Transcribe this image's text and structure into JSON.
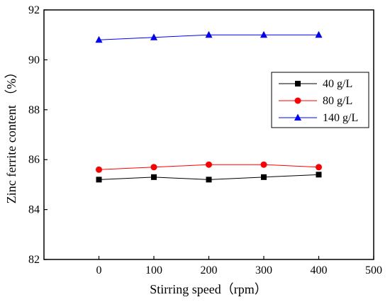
{
  "chart_data": {
    "type": "line",
    "title": "",
    "xlabel": "Stirring speed（rpm）",
    "ylabel": "Zinc ferrite content （%）",
    "xlim": [
      -100,
      500
    ],
    "ylim": [
      82,
      92
    ],
    "x_ticks": [
      "0",
      "100",
      "200",
      "300",
      "400",
      "500"
    ],
    "y_ticks": [
      "82",
      "84",
      "86",
      "88",
      "90",
      "92"
    ],
    "x": [
      0,
      100,
      200,
      300,
      400
    ],
    "grid": false,
    "legend_position": "right",
    "series": [
      {
        "name": "40 g/L",
        "values": [
          85.2,
          85.3,
          85.2,
          85.3,
          85.4
        ],
        "color": "#000000",
        "marker": "square"
      },
      {
        "name": "80 g/L",
        "values": [
          85.6,
          85.7,
          85.8,
          85.8,
          85.7
        ],
        "color": "#ff0000",
        "marker": "circle"
      },
      {
        "name": "140 g/L",
        "values": [
          90.8,
          90.9,
          91.0,
          91.0,
          91.0
        ],
        "color": "#0000ff",
        "marker": "triangle"
      }
    ]
  }
}
